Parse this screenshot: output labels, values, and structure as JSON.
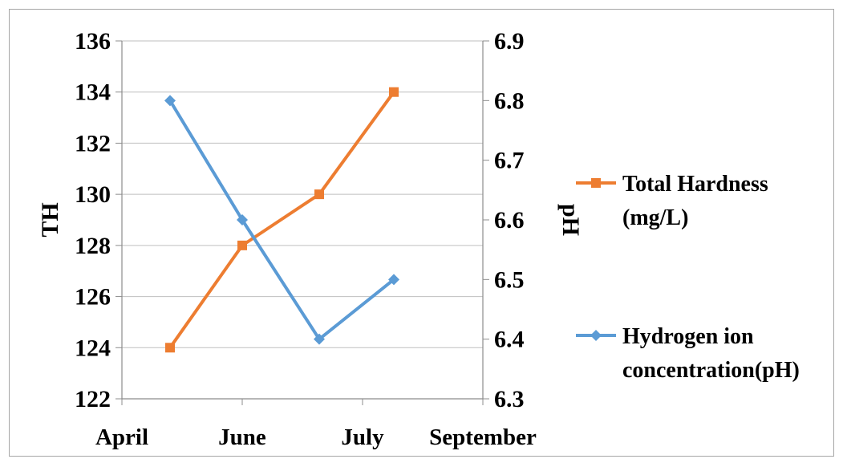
{
  "chart_data": {
    "type": "line",
    "categories": [
      "April",
      "June",
      "July",
      "September"
    ],
    "y_left": {
      "label": "TH",
      "min": 122,
      "max": 136,
      "step": 2,
      "ticks": [
        "122",
        "124",
        "126",
        "128",
        "130",
        "132",
        "134",
        "136"
      ]
    },
    "y_right": {
      "label": "pH",
      "min": 6.3,
      "max": 6.9,
      "step": 0.1,
      "ticks": [
        "6.3",
        "6.4",
        "6.5",
        "6.6",
        "6.7",
        "6.8",
        "6.9"
      ]
    },
    "grid": true,
    "legend_position": "right",
    "series": [
      {
        "name_lines": [
          "Total Hardness",
          "(mg/L)"
        ],
        "axis": "left",
        "color": "#ed7d31",
        "marker": "square",
        "x": [
          0.4,
          1.0,
          1.64,
          2.26
        ],
        "values": [
          124,
          128,
          130,
          134
        ]
      },
      {
        "name_lines": [
          "Hydrogen ion",
          "concentration(pH)"
        ],
        "axis": "right",
        "color": "#5b9bd5",
        "marker": "diamond",
        "x": [
          0.4,
          1.0,
          1.64,
          2.26
        ],
        "values": [
          6.8,
          6.6,
          6.4,
          6.5
        ]
      }
    ]
  }
}
